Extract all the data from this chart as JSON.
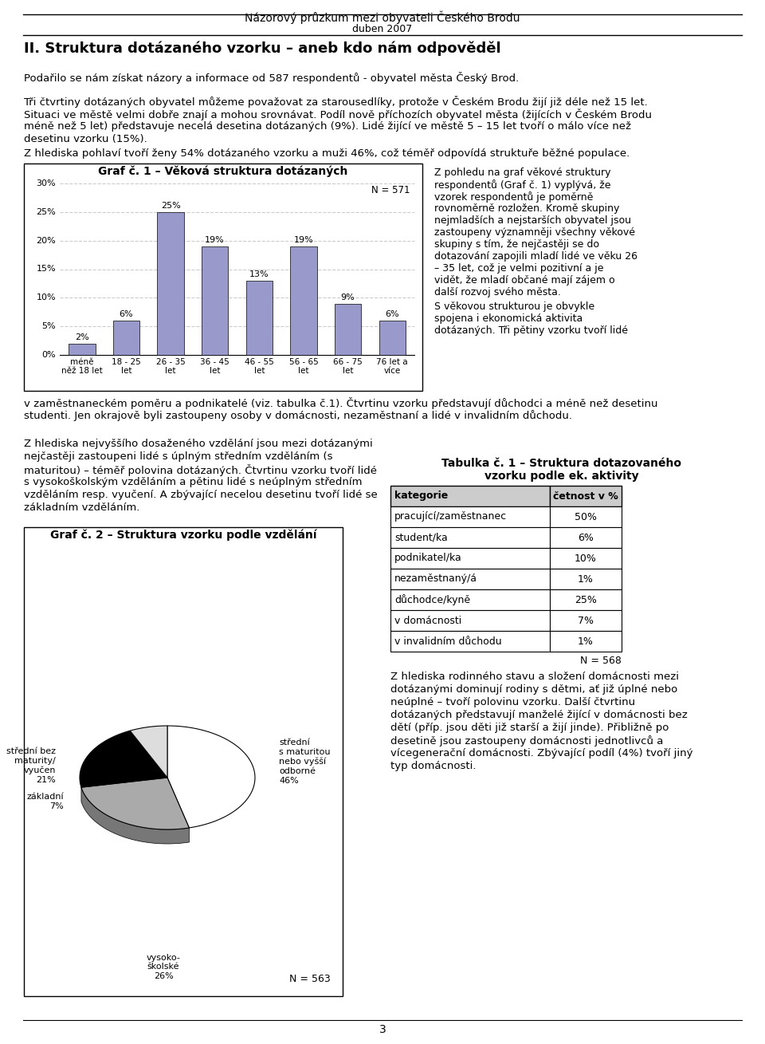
{
  "header_title": "Názorový průzkum mezi obyvateli Českého Brodu",
  "header_subtitle": "duben 2007",
  "section_title": "II. Struktura dotázaného vzorku – aneb kdo nám odpověděl",
  "para1": "Podařilo se nám získat názory a informace od 587 respondentů - obyvatel města Český Brod.",
  "para2": "Tři čtvrtiny dotázaných obyvatel můžeme považovat za starousedlíky, protože v Českém Brodu žijí již déle než 15 let.\nSituaci ve městě velmi dobře znají a mohou srovnávat. Podíl nově příchozích obyvatel města (žijících v Českém Brodu\nméně než 5 let) představuje necelá desetina dotázaných (9%). Lidé žijící ve městě 5 – 15 let tvoří o málo více než\ndesetinu vzorku (15%).",
  "para3": "Z hlediska pohlaví tvoří ženy 54% dotázaného vzorku a muži 46%, což téměř odpovídá struktuře běžné populace.",
  "bar_title": "Graf č. 1 – Věková struktura dotázaných",
  "bar_categories": [
    "méně\nněž 18 let",
    "18 - 25\nlet",
    "26 - 35\nlet",
    "36 - 45\nlet",
    "46 - 55\nlet",
    "56 - 65\nlet",
    "66 - 75\nlet",
    "76 let a\nvíce"
  ],
  "bar_values": [
    2,
    6,
    25,
    19,
    13,
    19,
    9,
    6
  ],
  "bar_color": "#9999cc",
  "bar_n_label": "N = 571",
  "bar_ylim": [
    0,
    30
  ],
  "bar_yticks": [
    0,
    5,
    10,
    15,
    20,
    25,
    30
  ],
  "bar_ytick_labels": [
    "0%",
    "5%",
    "10%",
    "15%",
    "20%",
    "25%",
    "30%"
  ],
  "right_text1": "Z pohledu na graf věkové struktury\nrespondentů (Graf č. 1) vyplývá, že\nvzorek respondentů je poměrně\nrovnoměrně rozložen. Kromě skupiny\nnejmladších a nejstarších obyvatel jsou\nzastoupeny významněji všechny věkové\nskupiny s tím, že nejčastěji se do\ndotazování zapojili mladí lidé ve věku 26\n– 35 let, což je velmi pozitivní a je\nvidět, že mladí občané mají zájem o\ndalší rozvoj svého města.",
  "right_text2": "S věkovou strukturou je obvykle\nspojena i ekonomická aktivita\ndotázaných. Tři pětiny vzorku tvoří lidé",
  "para4": "v zaměstnaneckém poměru a podnikatelé (viz. tabulka č.1). Čtvrtinu vzorku představují důchodci a méně než desetinu\nstudenti. Jen okrajově byli zastoupeny osoby v domácnosti, nezaměstnaní a lidé v invalidním důchodu.",
  "left_text_edu": "Z hlediska nejvyššího dosaženého vzdělání jsou mezi dotázanými\nnejčastěji zastoupeni lidé s úplným středním vzděláním (s\nmaturitou) – téměř polovina dotázaných. Čtvrtinu vzorku tvoří lidé\ns vysokoškolským vzděláním a pětinu lidé s neúplným středním\nvzděláním resp. vyučení. A zbývající necelou desetinu tvoří lidé se\nzákladním vzděláním.",
  "pie_title": "Graf č. 2 – Struktura vzorku podle vzdělání",
  "pie_slices": [
    46,
    26,
    21,
    7
  ],
  "pie_labels": [
    "střední\ns maturitou\nnebo vyšší\nodborné\n46%",
    "vysoko-\nškolské\n26%",
    "střední bez\nmaturity/\nvyučen\n21%",
    "základní\n7%"
  ],
  "pie_label_positions": [
    "right_top",
    "bottom",
    "left_top",
    "left"
  ],
  "pie_colors": [
    "#ffffff",
    "#aaaaaa",
    "#000000",
    "#dddddd"
  ],
  "pie_n_label": "N = 563",
  "table_title": "Tabulka č. 1 – Struktura dotazovaného\nvzorku podle ek. aktivity",
  "table_headers": [
    "kategorie",
    "četnost v %"
  ],
  "table_rows": [
    [
      "pracující/zaměstnanec",
      "50%"
    ],
    [
      "student/ka",
      "6%"
    ],
    [
      "podnikatel/ka",
      "10%"
    ],
    [
      "nezaměstnaný/á",
      "1%"
    ],
    [
      "důchodce/kyně",
      "25%"
    ],
    [
      "v domácnosti",
      "7%"
    ],
    [
      "v invalidním důchodu",
      "1%"
    ]
  ],
  "table_n_label": "N = 568",
  "right_text3": "Z hlediska rodinného stavu a složení domácnosti mezi\ndotázanými dominují rodiny s dětmi, ať již úplné nebo\nneúplné – tvoří polovinu vzorku. Další čtvrtinu\ndotázaných představují manželé žijící v domácnosti bez\ndětí (příp. jsou děti již starší a žijí jinde). Přibližně po\ndesetině jsou zastoupeny domácnosti jednotlivců a\nvícegenerační domácnosti. Zbývající podíl (4%) tvoří jiný\ntyp domácnosti.",
  "page_number": "3",
  "bg_color": "#ffffff",
  "text_color": "#000000",
  "grid_color": "#cccccc"
}
